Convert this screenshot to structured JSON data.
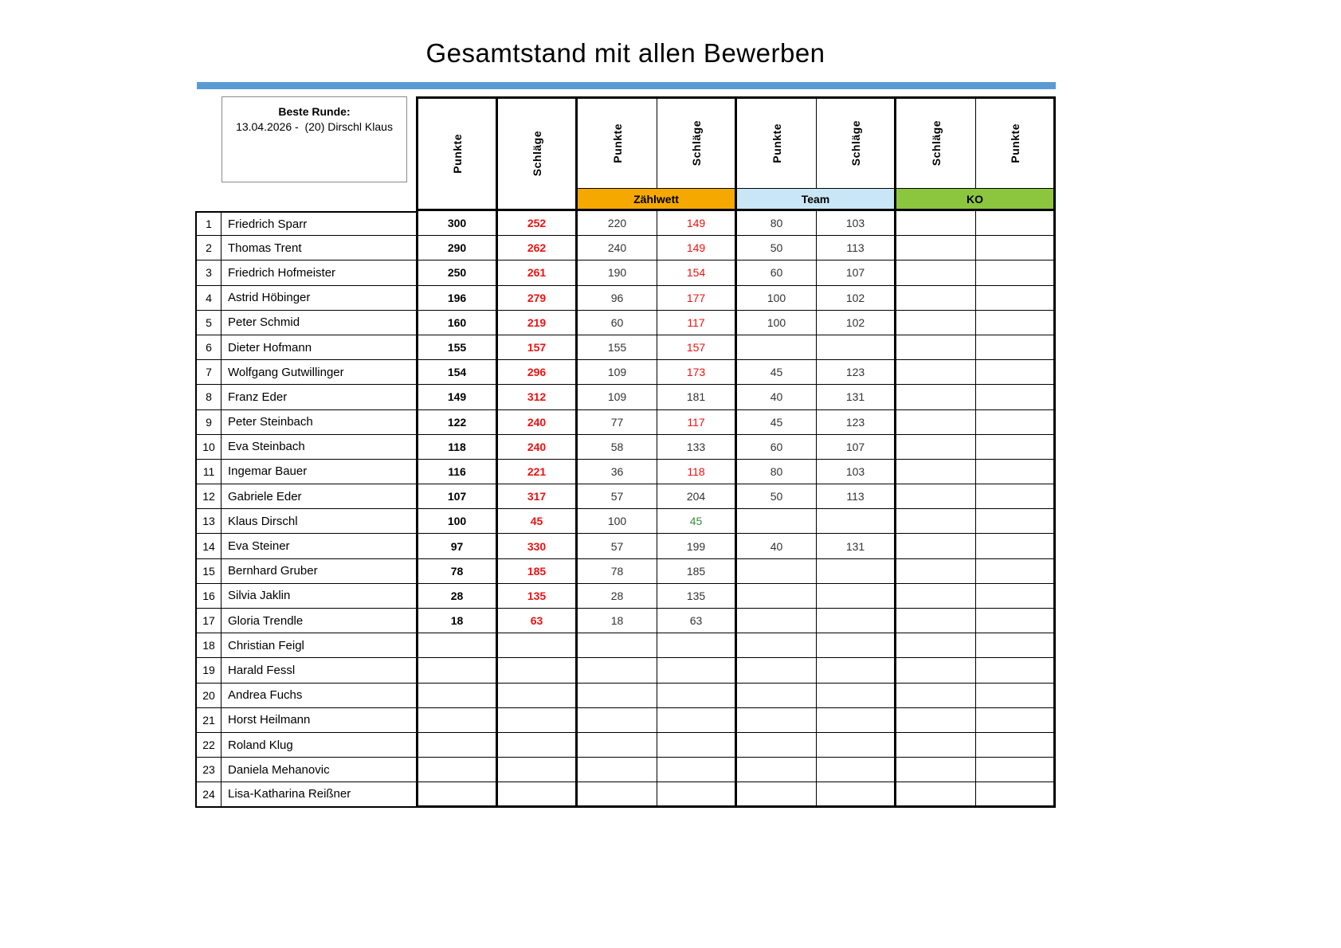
{
  "title": "Gesamtstand mit allen Bewerben",
  "accent_bar_color": "#5B9BD5",
  "best_round": {
    "label": "Beste Runde:",
    "value": "13.04.2026 -  (20) Dirschl Klaus"
  },
  "table": {
    "column_headers": [
      "Punkte",
      "Schläge",
      "Punkte",
      "Schläge",
      "Punkte",
      "Schläge",
      "Schläge",
      "Punkte"
    ],
    "groups": [
      {
        "label": "Zählwett",
        "color": "#F5A900"
      },
      {
        "label": "Team",
        "color": "#C9E6F6"
      },
      {
        "label": "KO",
        "color": "#8CC63F"
      }
    ],
    "value_colors": {
      "red": "#EE1111",
      "green": "#388E3C",
      "black": "#333333",
      "bold_black": "#000000"
    },
    "rows": [
      {
        "rank": 1,
        "name": "Friedrich Sparr",
        "punkte": "300",
        "schlaege": "252",
        "zw_punkte": "220",
        "zw_schlaege": "149",
        "zw_schlaege_color": "red",
        "team_punkte": "80",
        "team_schlaege": "103",
        "ko_schlaege": "",
        "ko_punkte": ""
      },
      {
        "rank": 2,
        "name": "Thomas Trent",
        "punkte": "290",
        "schlaege": "262",
        "zw_punkte": "240",
        "zw_schlaege": "149",
        "zw_schlaege_color": "red",
        "team_punkte": "50",
        "team_schlaege": "113",
        "ko_schlaege": "",
        "ko_punkte": ""
      },
      {
        "rank": 3,
        "name": "Friedrich Hofmeister",
        "punkte": "250",
        "schlaege": "261",
        "zw_punkte": "190",
        "zw_schlaege": "154",
        "zw_schlaege_color": "red",
        "team_punkte": "60",
        "team_schlaege": "107",
        "ko_schlaege": "",
        "ko_punkte": ""
      },
      {
        "rank": 4,
        "name": "Astrid Höbinger",
        "punkte": "196",
        "schlaege": "279",
        "zw_punkte": "96",
        "zw_schlaege": "177",
        "zw_schlaege_color": "red",
        "team_punkte": "100",
        "team_schlaege": "102",
        "ko_schlaege": "",
        "ko_punkte": ""
      },
      {
        "rank": 5,
        "name": "Peter Schmid",
        "punkte": "160",
        "schlaege": "219",
        "zw_punkte": "60",
        "zw_schlaege": "117",
        "zw_schlaege_color": "red",
        "team_punkte": "100",
        "team_schlaege": "102",
        "ko_schlaege": "",
        "ko_punkte": ""
      },
      {
        "rank": 6,
        "name": "Dieter Hofmann",
        "punkte": "155",
        "schlaege": "157",
        "zw_punkte": "155",
        "zw_schlaege": "157",
        "zw_schlaege_color": "red",
        "team_punkte": "",
        "team_schlaege": "",
        "ko_schlaege": "",
        "ko_punkte": ""
      },
      {
        "rank": 7,
        "name": "Wolfgang Gutwillinger",
        "punkte": "154",
        "schlaege": "296",
        "zw_punkte": "109",
        "zw_schlaege": "173",
        "zw_schlaege_color": "red",
        "team_punkte": "45",
        "team_schlaege": "123",
        "ko_schlaege": "",
        "ko_punkte": ""
      },
      {
        "rank": 8,
        "name": "Franz Eder",
        "punkte": "149",
        "schlaege": "312",
        "zw_punkte": "109",
        "zw_schlaege": "181",
        "zw_schlaege_color": "black",
        "team_punkte": "40",
        "team_schlaege": "131",
        "ko_schlaege": "",
        "ko_punkte": ""
      },
      {
        "rank": 9,
        "name": "Peter Steinbach",
        "punkte": "122",
        "schlaege": "240",
        "zw_punkte": "77",
        "zw_schlaege": "117",
        "zw_schlaege_color": "red",
        "team_punkte": "45",
        "team_schlaege": "123",
        "ko_schlaege": "",
        "ko_punkte": ""
      },
      {
        "rank": 10,
        "name": "Eva Steinbach",
        "punkte": "118",
        "schlaege": "240",
        "zw_punkte": "58",
        "zw_schlaege": "133",
        "zw_schlaege_color": "black",
        "team_punkte": "60",
        "team_schlaege": "107",
        "ko_schlaege": "",
        "ko_punkte": ""
      },
      {
        "rank": 11,
        "name": "Ingemar Bauer",
        "punkte": "116",
        "schlaege": "221",
        "zw_punkte": "36",
        "zw_schlaege": "118",
        "zw_schlaege_color": "red",
        "team_punkte": "80",
        "team_schlaege": "103",
        "ko_schlaege": "",
        "ko_punkte": ""
      },
      {
        "rank": 12,
        "name": "Gabriele Eder",
        "punkte": "107",
        "schlaege": "317",
        "zw_punkte": "57",
        "zw_schlaege": "204",
        "zw_schlaege_color": "black",
        "team_punkte": "50",
        "team_schlaege": "113",
        "ko_schlaege": "",
        "ko_punkte": ""
      },
      {
        "rank": 13,
        "name": "Klaus Dirschl",
        "punkte": "100",
        "schlaege": "45",
        "zw_punkte": "100",
        "zw_schlaege": "45",
        "zw_schlaege_color": "green",
        "team_punkte": "",
        "team_schlaege": "",
        "ko_schlaege": "",
        "ko_punkte": ""
      },
      {
        "rank": 14,
        "name": "Eva Steiner",
        "punkte": "97",
        "schlaege": "330",
        "zw_punkte": "57",
        "zw_schlaege": "199",
        "zw_schlaege_color": "black",
        "team_punkte": "40",
        "team_schlaege": "131",
        "ko_schlaege": "",
        "ko_punkte": ""
      },
      {
        "rank": 15,
        "name": "Bernhard Gruber",
        "punkte": "78",
        "schlaege": "185",
        "zw_punkte": "78",
        "zw_schlaege": "185",
        "zw_schlaege_color": "black",
        "team_punkte": "",
        "team_schlaege": "",
        "ko_schlaege": "",
        "ko_punkte": ""
      },
      {
        "rank": 16,
        "name": "Silvia Jaklin",
        "punkte": "28",
        "schlaege": "135",
        "zw_punkte": "28",
        "zw_schlaege": "135",
        "zw_schlaege_color": "black",
        "team_punkte": "",
        "team_schlaege": "",
        "ko_schlaege": "",
        "ko_punkte": ""
      },
      {
        "rank": 17,
        "name": "Gloria Trendle",
        "punkte": "18",
        "schlaege": "63",
        "zw_punkte": "18",
        "zw_schlaege": "63",
        "zw_schlaege_color": "black",
        "team_punkte": "",
        "team_schlaege": "",
        "ko_schlaege": "",
        "ko_punkte": ""
      },
      {
        "rank": 18,
        "name": "Christian Feigl",
        "punkte": "",
        "schlaege": "",
        "zw_punkte": "",
        "zw_schlaege": "",
        "zw_schlaege_color": "black",
        "team_punkte": "",
        "team_schlaege": "",
        "ko_schlaege": "",
        "ko_punkte": ""
      },
      {
        "rank": 19,
        "name": "Harald Fessl",
        "punkte": "",
        "schlaege": "",
        "zw_punkte": "",
        "zw_schlaege": "",
        "zw_schlaege_color": "black",
        "team_punkte": "",
        "team_schlaege": "",
        "ko_schlaege": "",
        "ko_punkte": ""
      },
      {
        "rank": 20,
        "name": "Andrea Fuchs",
        "punkte": "",
        "schlaege": "",
        "zw_punkte": "",
        "zw_schlaege": "",
        "zw_schlaege_color": "black",
        "team_punkte": "",
        "team_schlaege": "",
        "ko_schlaege": "",
        "ko_punkte": ""
      },
      {
        "rank": 21,
        "name": "Horst Heilmann",
        "punkte": "",
        "schlaege": "",
        "zw_punkte": "",
        "zw_schlaege": "",
        "zw_schlaege_color": "black",
        "team_punkte": "",
        "team_schlaege": "",
        "ko_schlaege": "",
        "ko_punkte": ""
      },
      {
        "rank": 22,
        "name": "Roland Klug",
        "punkte": "",
        "schlaege": "",
        "zw_punkte": "",
        "zw_schlaege": "",
        "zw_schlaege_color": "black",
        "team_punkte": "",
        "team_schlaege": "",
        "ko_schlaege": "",
        "ko_punkte": ""
      },
      {
        "rank": 23,
        "name": "Daniela Mehanovic",
        "punkte": "",
        "schlaege": "",
        "zw_punkte": "",
        "zw_schlaege": "",
        "zw_schlaege_color": "black",
        "team_punkte": "",
        "team_schlaege": "",
        "ko_schlaege": "",
        "ko_punkte": ""
      },
      {
        "rank": 24,
        "name": "Lisa-Katharina Reißner",
        "punkte": "",
        "schlaege": "",
        "zw_punkte": "",
        "zw_schlaege": "",
        "zw_schlaege_color": "black",
        "team_punkte": "",
        "team_schlaege": "",
        "ko_schlaege": "",
        "ko_punkte": ""
      }
    ]
  }
}
